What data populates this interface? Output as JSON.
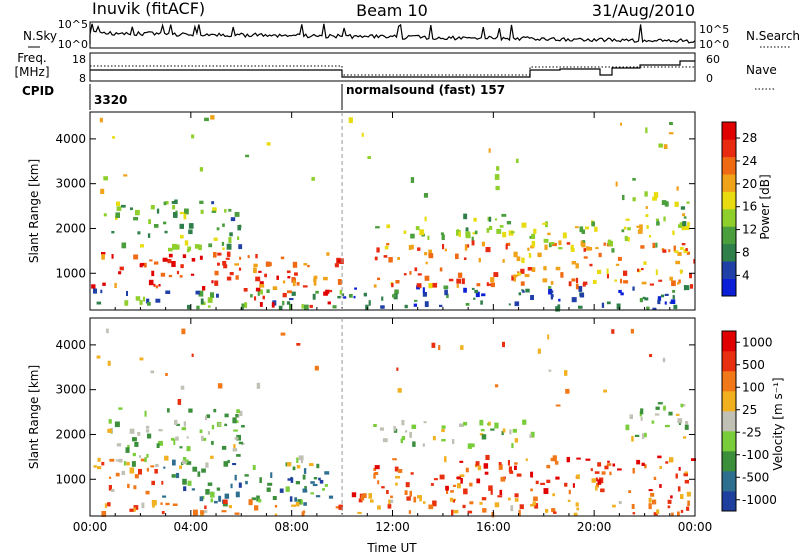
{
  "header": {
    "station": "Inuvik (fitACF)",
    "beam": "Beam 10",
    "date": "31/Aug/2010"
  },
  "strip": {
    "nsky_label": "N.Sky",
    "nsky_ticks": [
      "10^5",
      "10^0"
    ],
    "nsearch_label": "N.Search",
    "nsearch_ticks": [
      "10^5",
      "10^0"
    ],
    "freq_label": "Freq.",
    "freq_unit": "[MHz]",
    "freq_ticks": [
      "18",
      "8"
    ],
    "nave_label": "Nave",
    "nave_ticks": [
      "60",
      "0"
    ],
    "cpid_label": "CPID",
    "cpid_segments": [
      {
        "start_hour": 0,
        "text": "3320"
      },
      {
        "start_hour": 10,
        "text": "normalsound (fast) 157"
      }
    ]
  },
  "chart_data": [
    {
      "type": "heatmap",
      "quantity": "Power",
      "ylabel": "Slant Range [km]",
      "xlabel": "",
      "xlim_hours": [
        0,
        24
      ],
      "ylim": [
        180,
        4600
      ],
      "yticks": [
        1000,
        2000,
        3000,
        4000
      ],
      "xticks": [
        "00:00",
        "04:00",
        "08:00",
        "12:00",
        "16:00",
        "20:00",
        "00:00"
      ],
      "colorbar": {
        "label": "Power [dB]",
        "ticks": [
          4,
          8,
          12,
          16,
          20,
          24,
          28
        ],
        "colors": [
          "#0a1fd6",
          "#2040a8",
          "#2e7f4a",
          "#4a9e3c",
          "#8fcf2c",
          "#e8dc10",
          "#f0a218",
          "#ef6a12",
          "#e82a10",
          "#e00000"
        ]
      },
      "scatter_regions": [
        {
          "t": [
            0.0,
            10.0
          ],
          "r": [
            620,
            1450
          ],
          "level": 0.82
        },
        {
          "t": [
            0.0,
            10.0
          ],
          "r": [
            200,
            620
          ],
          "level": 0.3
        },
        {
          "t": [
            6.5,
            9.6
          ],
          "r": [
            250,
            650
          ],
          "level": 0.9
        },
        {
          "t": [
            10.0,
            24.0
          ],
          "r": [
            200,
            700
          ],
          "level": 0.2
        },
        {
          "t": [
            11.2,
            24.0
          ],
          "r": [
            700,
            1700
          ],
          "level": 0.72
        },
        {
          "t": [
            11.2,
            17.5
          ],
          "r": [
            1750,
            2300
          ],
          "level": 0.45
        },
        {
          "t": [
            17.5,
            23.5
          ],
          "r": [
            1500,
            2200
          ],
          "level": 0.5
        },
        {
          "t": [
            21.0,
            23.8
          ],
          "r": [
            2000,
            2700
          ],
          "level": 0.45
        },
        {
          "t": [
            0.5,
            6.0
          ],
          "r": [
            1500,
            2600
          ],
          "level": 0.35
        },
        {
          "t": [
            0.0,
            24.0
          ],
          "r": [
            2600,
            4500
          ],
          "level": 0.5
        }
      ]
    },
    {
      "type": "heatmap",
      "quantity": "Velocity",
      "ylabel": "Slant Range [km]",
      "xlabel": "Time UT",
      "xlim_hours": [
        0,
        24
      ],
      "ylim": [
        180,
        4600
      ],
      "yticks": [
        1000,
        2000,
        3000,
        4000
      ],
      "xticks": [
        "00:00",
        "04:00",
        "08:00",
        "12:00",
        "16:00",
        "20:00",
        "00:00"
      ],
      "colorbar": {
        "label": "Velocity [m s⁻¹]",
        "ticks": [
          1000,
          500,
          100,
          25,
          -25,
          -100,
          -500,
          -1000
        ],
        "colors": [
          "#1f3f9f",
          "#2e6f8f",
          "#3b8f3b",
          "#7acd3a",
          "#c0c0b4",
          "#f0b020",
          "#f07818",
          "#e83010",
          "#e00000"
        ]
      },
      "scatter_regions": [
        {
          "t": [
            0.0,
            3.0
          ],
          "r": [
            700,
            1450
          ],
          "level": 0.72
        },
        {
          "t": [
            2.5,
            9.5
          ],
          "r": [
            400,
            1400
          ],
          "level": 0.25
        },
        {
          "t": [
            1.0,
            9.0
          ],
          "r": [
            1250,
            1500
          ],
          "level": 0.45
        },
        {
          "t": [
            0.0,
            10.0
          ],
          "r": [
            200,
            500
          ],
          "level": 0.7
        },
        {
          "t": [
            10.0,
            24.0
          ],
          "r": [
            200,
            700
          ],
          "level": 0.72
        },
        {
          "t": [
            11.2,
            24.0
          ],
          "r": [
            700,
            1500
          ],
          "level": 0.8
        },
        {
          "t": [
            11.2,
            17.5
          ],
          "r": [
            1700,
            2300
          ],
          "level": 0.45
        },
        {
          "t": [
            21.0,
            23.8
          ],
          "r": [
            1900,
            2700
          ],
          "level": 0.45
        },
        {
          "t": [
            0.5,
            6.0
          ],
          "r": [
            1500,
            2600
          ],
          "level": 0.4
        },
        {
          "t": [
            0.0,
            24.0
          ],
          "r": [
            2600,
            4500
          ],
          "level": 0.7
        }
      ]
    }
  ]
}
